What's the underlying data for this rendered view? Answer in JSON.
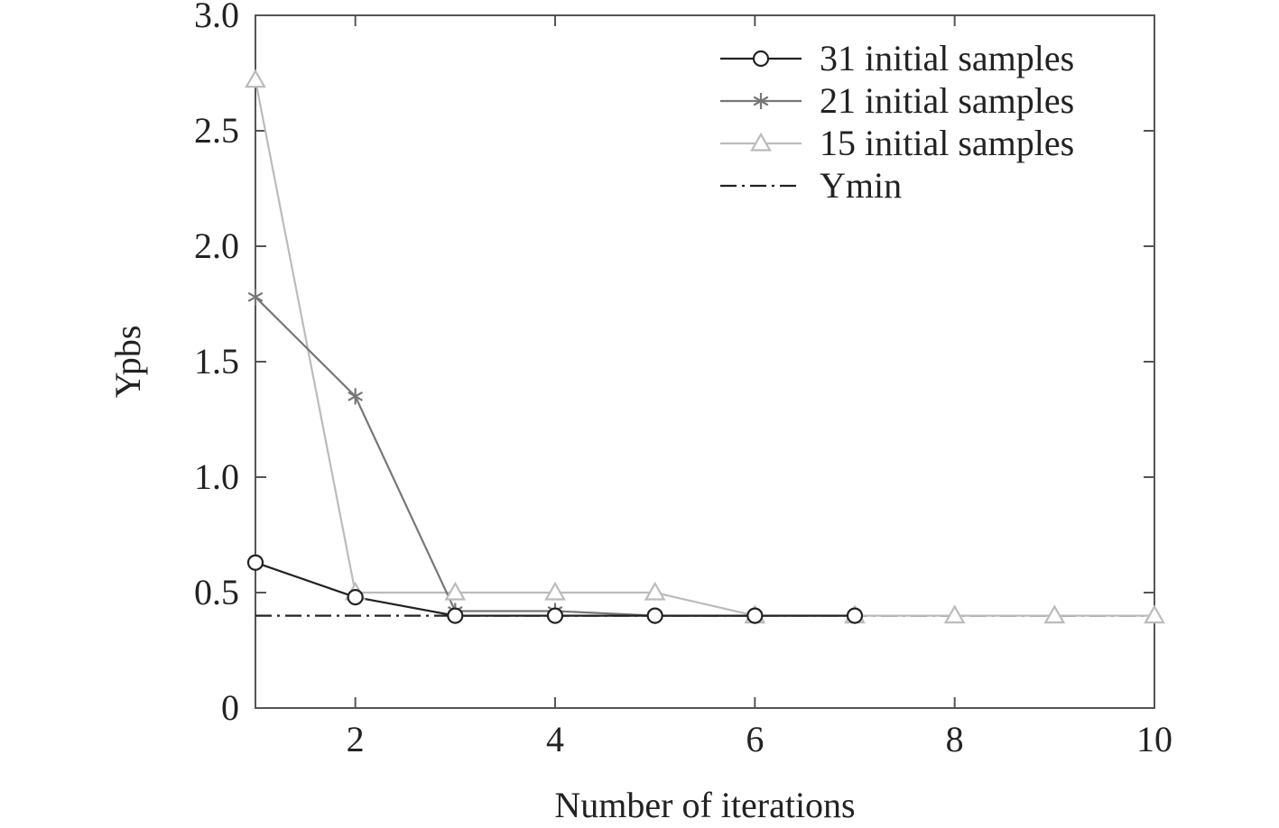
{
  "chart_data": {
    "type": "line",
    "title": "",
    "xlabel": "Number of iterations",
    "ylabel": "Ypbs",
    "xlim": [
      1,
      10
    ],
    "ylim": [
      0,
      3.0
    ],
    "xticks": [
      2,
      4,
      6,
      8,
      10
    ],
    "xtick_labels": [
      "2",
      "4",
      "6",
      "8",
      "10"
    ],
    "yticks": [
      0,
      0.5,
      1.0,
      1.5,
      2.0,
      2.5,
      3.0
    ],
    "ytick_labels": [
      "0",
      "0.5",
      "1.0",
      "1.5",
      "2.0",
      "2.5",
      "3.0"
    ],
    "grid": false,
    "legend_position": "top-right",
    "series": [
      {
        "name": "31 initial samples",
        "marker": "circle",
        "color": "#222222",
        "x": [
          1,
          2,
          3,
          4,
          5,
          6,
          7
        ],
        "values": [
          0.63,
          0.48,
          0.4,
          0.4,
          0.4,
          0.4,
          0.4
        ]
      },
      {
        "name": "21 initial samples",
        "marker": "asterisk",
        "color": "#777777",
        "x": [
          1,
          2,
          3,
          4,
          5,
          6
        ],
        "values": [
          1.78,
          1.35,
          0.42,
          0.42,
          0.4,
          0.4
        ]
      },
      {
        "name": "15 initial samples",
        "marker": "triangle",
        "color": "#bbbbbb",
        "x": [
          1,
          2,
          3,
          4,
          5,
          6,
          7,
          8,
          9,
          10
        ],
        "values": [
          2.72,
          0.5,
          0.5,
          0.5,
          0.5,
          0.4,
          0.4,
          0.4,
          0.4,
          0.4
        ]
      }
    ],
    "reference_lines": [
      {
        "name": "Ymin",
        "y": 0.4,
        "style": "dash-dot",
        "color": "#222222"
      }
    ]
  }
}
